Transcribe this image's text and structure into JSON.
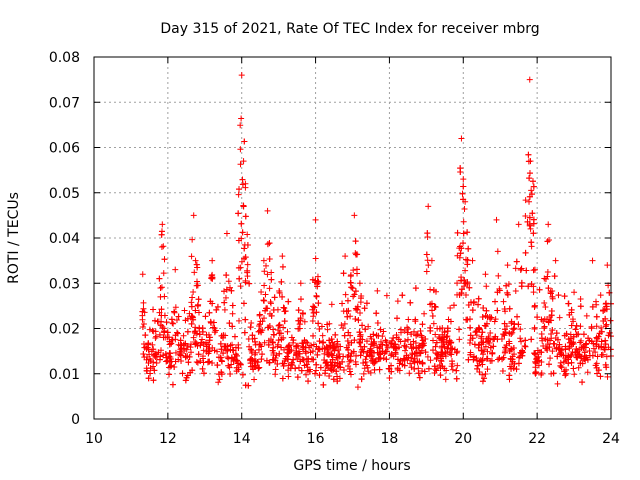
{
  "chart_data": {
    "type": "scatter",
    "title": "Day 315 of 2021, Rate Of TEC Index for receiver mbrg",
    "xlabel": "GPS time / hours",
    "ylabel": "ROTI / TECUs",
    "xlim": [
      10,
      24
    ],
    "ylim": [
      0,
      0.08
    ],
    "x_ticks": [
      10,
      12,
      14,
      16,
      18,
      20,
      22,
      24
    ],
    "x_tick_labels": [
      "10",
      "12",
      "14",
      "16",
      "18",
      "20",
      "22",
      "24"
    ],
    "y_ticks": [
      0,
      0.01,
      0.02,
      0.03,
      0.04,
      0.05,
      0.06,
      0.07,
      0.08
    ],
    "y_tick_labels": [
      "0",
      "0.01",
      "0.02",
      "0.03",
      "0.04",
      "0.05",
      "0.06",
      "0.07",
      "0.08"
    ],
    "grid": true,
    "marker": "+",
    "color": "#ff0000",
    "series": [
      {
        "name": "ROTI",
        "x_start": 11.3,
        "x_end": 24.0,
        "baseline_range": [
          0.005,
          0.018
        ],
        "peaks": [
          {
            "x": 11.32,
            "y": 0.032
          },
          {
            "x": 11.8,
            "y": 0.027
          },
          {
            "x": 11.85,
            "y": 0.043
          },
          {
            "x": 12.2,
            "y": 0.033
          },
          {
            "x": 12.7,
            "y": 0.045
          },
          {
            "x": 12.75,
            "y": 0.035
          },
          {
            "x": 13.2,
            "y": 0.035
          },
          {
            "x": 13.6,
            "y": 0.041
          },
          {
            "x": 14.0,
            "y": 0.076
          },
          {
            "x": 14.05,
            "y": 0.057
          },
          {
            "x": 14.1,
            "y": 0.052
          },
          {
            "x": 14.7,
            "y": 0.046
          },
          {
            "x": 14.6,
            "y": 0.035
          },
          {
            "x": 15.1,
            "y": 0.036
          },
          {
            "x": 15.6,
            "y": 0.03
          },
          {
            "x": 16.0,
            "y": 0.044
          },
          {
            "x": 16.8,
            "y": 0.036
          },
          {
            "x": 17.05,
            "y": 0.045
          },
          {
            "x": 17.2,
            "y": 0.03
          },
          {
            "x": 18.2,
            "y": 0.018
          },
          {
            "x": 18.7,
            "y": 0.022
          },
          {
            "x": 19.05,
            "y": 0.047
          },
          {
            "x": 19.15,
            "y": 0.035
          },
          {
            "x": 19.6,
            "y": 0.022
          },
          {
            "x": 19.95,
            "y": 0.062
          },
          {
            "x": 20.0,
            "y": 0.053
          },
          {
            "x": 20.05,
            "y": 0.048
          },
          {
            "x": 20.25,
            "y": 0.035
          },
          {
            "x": 20.6,
            "y": 0.032
          },
          {
            "x": 20.9,
            "y": 0.044
          },
          {
            "x": 21.2,
            "y": 0.034
          },
          {
            "x": 21.5,
            "y": 0.043
          },
          {
            "x": 21.8,
            "y": 0.075
          },
          {
            "x": 21.82,
            "y": 0.057
          },
          {
            "x": 21.78,
            "y": 0.048
          },
          {
            "x": 22.3,
            "y": 0.043
          },
          {
            "x": 22.5,
            "y": 0.035
          },
          {
            "x": 23.0,
            "y": 0.028
          },
          {
            "x": 23.5,
            "y": 0.035
          },
          {
            "x": 23.9,
            "y": 0.034
          }
        ]
      }
    ]
  }
}
